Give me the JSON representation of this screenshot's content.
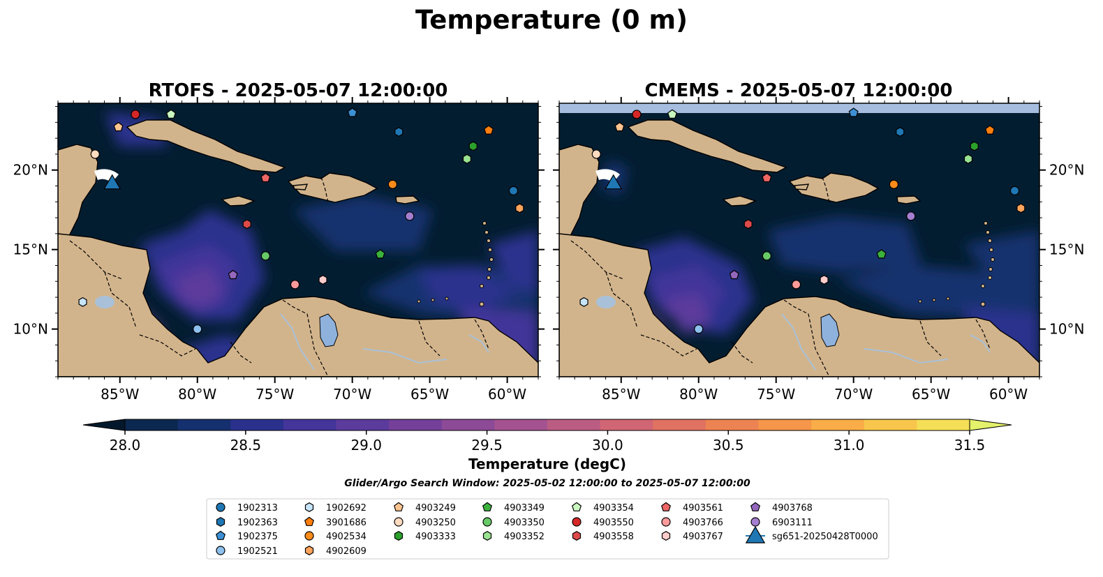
{
  "figure_title": "Temperature (0 m)",
  "panels": [
    {
      "id": "rtofs",
      "title": "RTOFS - 2025-05-07 12:00:00"
    },
    {
      "id": "cmems",
      "title": "CMEMS - 2025-05-07 12:00:00"
    }
  ],
  "map_extent": {
    "lon": [
      -89,
      -58
    ],
    "lat": [
      7,
      24.2
    ]
  },
  "lon_ticks": [
    {
      "value": -85,
      "label": "85°W"
    },
    {
      "value": -80,
      "label": "80°W"
    },
    {
      "value": -75,
      "label": "75°W"
    },
    {
      "value": -70,
      "label": "70°W"
    },
    {
      "value": -65,
      "label": "65°W"
    },
    {
      "value": -60,
      "label": "60°W"
    }
  ],
  "lat_ticks": [
    {
      "value": 20,
      "label": "20°N"
    },
    {
      "value": 15,
      "label": "15°N"
    },
    {
      "value": 10,
      "label": "10°N"
    }
  ],
  "colorbar": {
    "label": "Temperature (degC)",
    "min": 28.0,
    "max": 31.5,
    "ticks": [
      "28.0",
      "28.5",
      "29.0",
      "29.5",
      "30.0",
      "30.5",
      "31.0",
      "31.5"
    ],
    "colors": [
      "#03192b",
      "#0b2850",
      "#15306e",
      "#2a318d",
      "#43359a",
      "#5b3b9c",
      "#74409a",
      "#8c4a97",
      "#a45390",
      "#bb5d83",
      "#d06674",
      "#e07262",
      "#ed8352",
      "#f5964a",
      "#f9ac47",
      "#f8c64c",
      "#f5df57",
      "#e4f16a"
    ]
  },
  "colors": {
    "ocean": "#031d30",
    "land": "#d2b48c",
    "lake": "#8fb2dd",
    "mask_strip": "#a6bddf",
    "river": "#a9c1d8"
  },
  "search_window": "Glider/Argo Search Window: 2025-05-02 12:00:00 to 2025-05-07 12:00:00",
  "legend": [
    {
      "id": "1902313",
      "marker": "circle",
      "color": "#1f77b4"
    },
    {
      "id": "1902363",
      "marker": "hexagon",
      "color": "#1f77b4"
    },
    {
      "id": "1902375",
      "marker": "pentagon",
      "color": "#3c8fd4"
    },
    {
      "id": "1902521",
      "marker": "circle",
      "color": "#8ec1ee"
    },
    {
      "id": "1902692",
      "marker": "hexagon",
      "color": "#c7e4fb"
    },
    {
      "id": "3901686",
      "marker": "pentagon",
      "color": "#ff7f0e"
    },
    {
      "id": "4902534",
      "marker": "circle",
      "color": "#ff8c1a"
    },
    {
      "id": "4902609",
      "marker": "hexagon",
      "color": "#ffa45c"
    },
    {
      "id": "4903249",
      "marker": "pentagon",
      "color": "#ffc590"
    },
    {
      "id": "4903250",
      "marker": "circle",
      "color": "#ffdcc0"
    },
    {
      "id": "4903333",
      "marker": "hexagon",
      "color": "#2ca02c"
    },
    {
      "id": "4903349",
      "marker": "pentagon",
      "color": "#3cb13c"
    },
    {
      "id": "4903350",
      "marker": "circle",
      "color": "#67c967"
    },
    {
      "id": "4903352",
      "marker": "hexagon",
      "color": "#99e291"
    },
    {
      "id": "4903354",
      "marker": "pentagon",
      "color": "#c9f7c0"
    },
    {
      "id": "4903550",
      "marker": "circle",
      "color": "#d62728"
    },
    {
      "id": "4903558",
      "marker": "hexagon",
      "color": "#dd4a4a"
    },
    {
      "id": "4903561",
      "marker": "pentagon",
      "color": "#ee6666"
    },
    {
      "id": "4903766",
      "marker": "circle",
      "color": "#ff9a9a"
    },
    {
      "id": "4903767",
      "marker": "hexagon",
      "color": "#ffcccc"
    },
    {
      "id": "4903768",
      "marker": "pentagon",
      "color": "#9467bd"
    },
    {
      "id": "6903111",
      "marker": "circle",
      "color": "#a57fcf"
    },
    {
      "id": "sg651-20250428T0000",
      "marker": "triangle",
      "color": "#1f77b4"
    }
  ],
  "observations": [
    {
      "id": "4903550",
      "lon": -84.0,
      "lat": 23.5
    },
    {
      "id": "4903354",
      "lon": -81.7,
      "lat": 23.5
    },
    {
      "id": "4903249",
      "lon": -85.1,
      "lat": 22.7
    },
    {
      "id": "1902375",
      "lon": -70.0,
      "lat": 23.6
    },
    {
      "id": "1902363",
      "lon": -67.0,
      "lat": 22.4
    },
    {
      "id": "3901686",
      "lon": -61.2,
      "lat": 22.5
    },
    {
      "id": "4903333",
      "lon": -62.2,
      "lat": 21.5
    },
    {
      "id": "4903352",
      "lon": -62.6,
      "lat": 20.7
    },
    {
      "id": "4903250",
      "lon": -86.6,
      "lat": 21.0
    },
    {
      "id": "4903561",
      "lon": -75.6,
      "lat": 19.5
    },
    {
      "id": "4902534",
      "lon": -67.4,
      "lat": 19.1
    },
    {
      "id": "1902313",
      "lon": -59.6,
      "lat": 18.7
    },
    {
      "id": "4902609",
      "lon": -59.2,
      "lat": 17.6
    },
    {
      "id": "6903111",
      "lon": -66.3,
      "lat": 17.1
    },
    {
      "id": "4903558",
      "lon": -76.8,
      "lat": 16.6
    },
    {
      "id": "4903350",
      "lon": -75.6,
      "lat": 14.6
    },
    {
      "id": "4903349",
      "lon": -68.2,
      "lat": 14.7
    },
    {
      "id": "4903768",
      "lon": -77.7,
      "lat": 13.4
    },
    {
      "id": "4903766",
      "lon": -73.7,
      "lat": 12.8
    },
    {
      "id": "4903767",
      "lon": -71.9,
      "lat": 13.1
    },
    {
      "id": "1902692",
      "lon": -87.4,
      "lat": 11.7
    },
    {
      "id": "1902521",
      "lon": -80.0,
      "lat": 10.0
    },
    {
      "id": "sg651-20250428T0000",
      "lon": -85.5,
      "lat": 19.2
    }
  ]
}
